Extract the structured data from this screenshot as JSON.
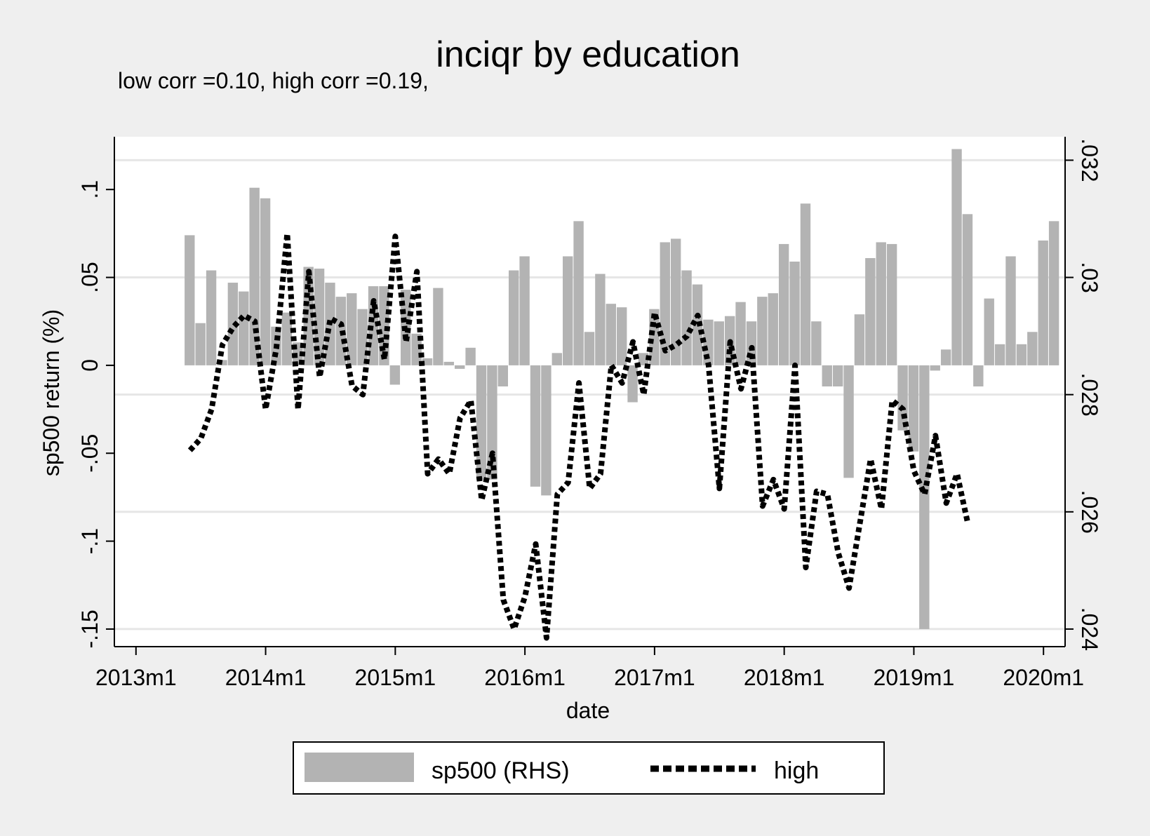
{
  "chart_data": {
    "type": "bar+line",
    "title": "inciqr by education",
    "subtitle": "low corr =0.10, high corr =0.19,",
    "xlabel": "date",
    "ylabel_left": "sp500 return (%)",
    "ylabel_right": "",
    "x_ticks": [
      "2013m1",
      "2014m1",
      "2015m1",
      "2016m1",
      "2017m1",
      "2018m1",
      "2019m1",
      "2020m1"
    ],
    "y_left_ticks": [
      "-.15",
      "-.1",
      "-.05",
      "0",
      ".05",
      ".1"
    ],
    "y_left_tick_values": [
      -0.15,
      -0.1,
      -0.05,
      0,
      0.05,
      0.1
    ],
    "y_right_ticks": [
      ".024",
      ".026",
      ".028",
      ".03",
      ".032"
    ],
    "y_right_tick_values": [
      0.024,
      0.026,
      0.028,
      0.03,
      0.032
    ],
    "ylim_left": [
      -0.16,
      0.13
    ],
    "ylim_right": [
      0.0237,
      0.0324
    ],
    "xlim_months": [
      "2012m11",
      "2020m3"
    ],
    "grid": "horizontal at right-axis ticks",
    "legend_position": "bottom",
    "bar_color": "#b3b3b3",
    "line_color": "#000000",
    "series": [
      {
        "name": "sp500 (RHS)",
        "type": "bar",
        "axis": "left",
        "start": "2013m6",
        "values": [
          0.074,
          0.024,
          0.054,
          0.003,
          0.047,
          0.042,
          0.101,
          0.095,
          0.022,
          0.03,
          0.013,
          0.056,
          0.055,
          0.047,
          0.039,
          0.041,
          0.032,
          0.045,
          0.045,
          -0.011,
          0.043,
          0.018,
          0.004,
          0.044,
          0.002,
          -0.002,
          0.01,
          -0.065,
          -0.065,
          -0.012,
          0.054,
          0.062,
          -0.069,
          -0.074,
          0.007,
          0.062,
          0.082,
          0.019,
          0.052,
          0.035,
          0.033,
          -0.021,
          0.007,
          0.032,
          0.07,
          0.072,
          0.054,
          0.046,
          0.026,
          0.025,
          0.028,
          0.036,
          0.025,
          0.039,
          0.041,
          0.069,
          0.059,
          0.092,
          0.025,
          -0.012,
          -0.012,
          -0.064,
          0.029,
          0.061,
          0.07,
          0.069,
          -0.037,
          -0.049,
          -0.15,
          -0.003,
          0.009,
          0.123,
          0.086,
          -0.012,
          0.038,
          0.012,
          0.062,
          0.012,
          0.019,
          0.071,
          0.082
        ]
      },
      {
        "name": "high",
        "type": "line",
        "style": "dotted",
        "axis": "right",
        "start": "2013m6",
        "values": [
          0.02705,
          0.02725,
          0.02775,
          0.02885,
          0.02915,
          0.02935,
          0.02925,
          0.02775,
          0.0288,
          0.03075,
          0.02775,
          0.0301,
          0.0283,
          0.0293,
          0.0292,
          0.02815,
          0.028,
          0.0296,
          0.0286,
          0.0307,
          0.0289,
          0.0301,
          0.02665,
          0.0269,
          0.02665,
          0.0276,
          0.0279,
          0.0262,
          0.027,
          0.0245,
          0.024,
          0.02455,
          0.02545,
          0.02385,
          0.0263,
          0.0265,
          0.0282,
          0.0264,
          0.02665,
          0.0285,
          0.0282,
          0.0289,
          0.028,
          0.0294,
          0.02875,
          0.02885,
          0.029,
          0.02935,
          0.0285,
          0.0264,
          0.0289,
          0.0281,
          0.0288,
          0.0261,
          0.02655,
          0.02605,
          0.0285,
          0.02505,
          0.02635,
          0.0263,
          0.0253,
          0.0247,
          0.0258,
          0.0269,
          0.02605,
          0.0279,
          0.02775,
          0.0267,
          0.0263,
          0.0273,
          0.02615,
          0.02665,
          0.0258
        ]
      }
    ]
  }
}
